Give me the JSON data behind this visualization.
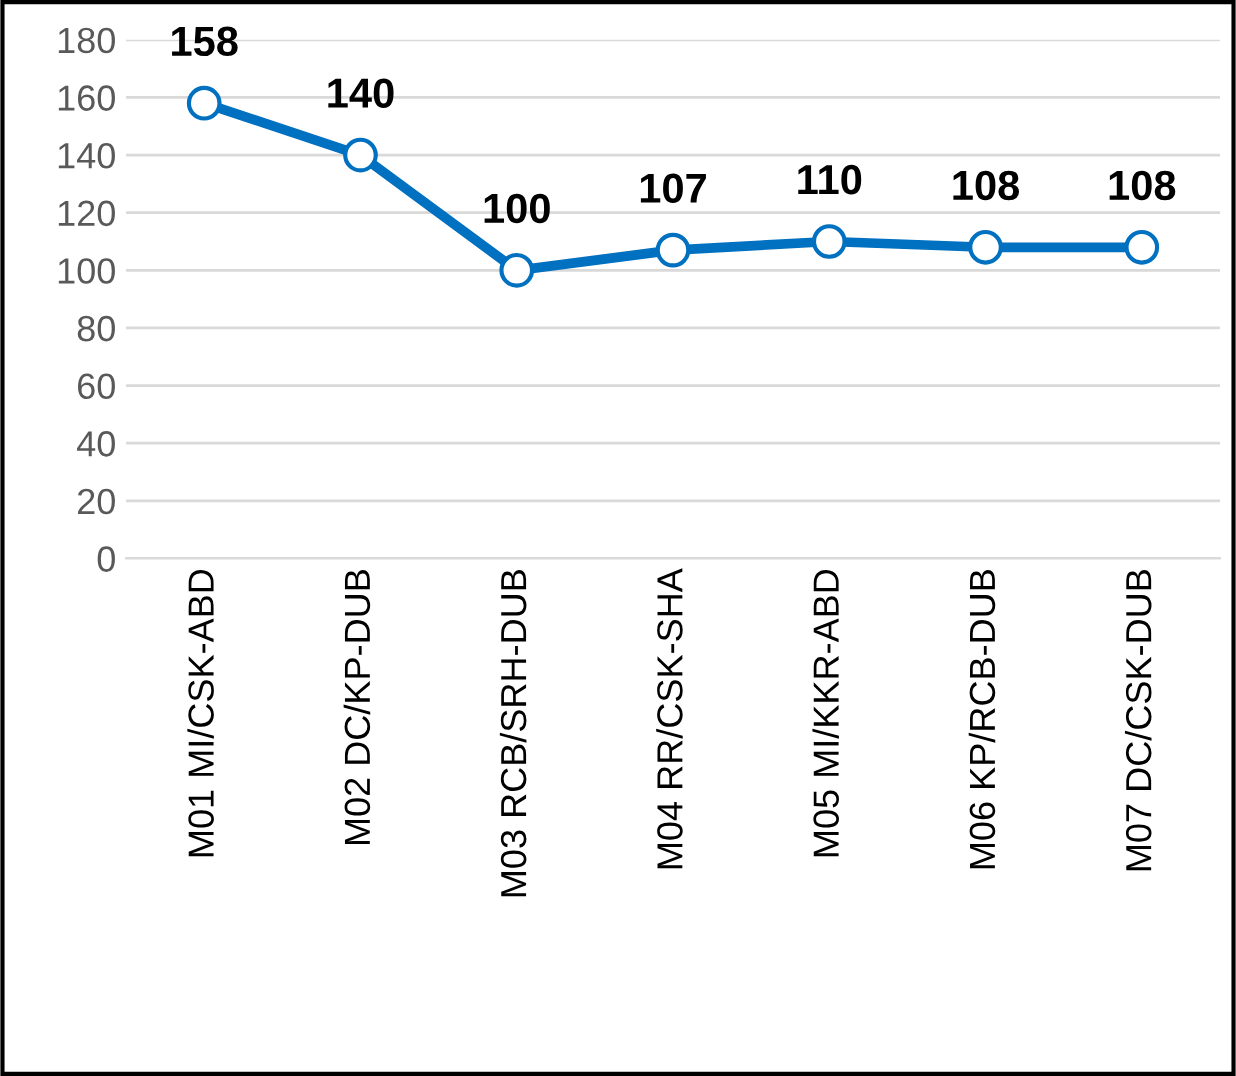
{
  "chart_data": {
    "type": "line",
    "categories": [
      "M01 MI/CSK-ABD",
      "M02 DC/KP-DUB",
      "M03 RCB/SRH-DUB",
      "M04 RR/CSK-SHA",
      "M05 MI/KKR-ABD",
      "M06 KP/RCB-DUB",
      "M07 DC/CSK-DUB"
    ],
    "series": [
      {
        "color": "#0070c0",
        "values": [
          158,
          140,
          100,
          107,
          110,
          108,
          108
        ]
      }
    ],
    "ylim": [
      0,
      180
    ],
    "yticks": [
      0,
      20,
      40,
      60,
      80,
      100,
      120,
      140,
      160,
      180
    ],
    "grid": "y",
    "marker": "circle",
    "line_style": "solid",
    "data_labels": true
  }
}
